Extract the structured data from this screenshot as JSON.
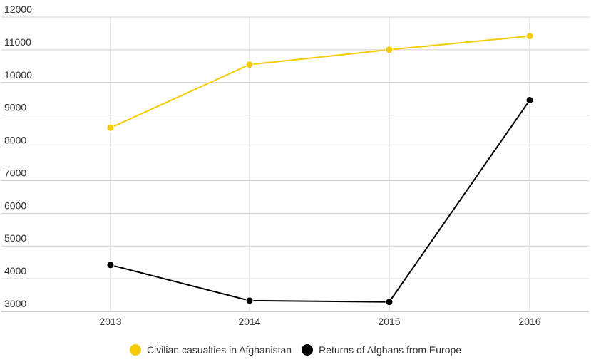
{
  "chart_data": {
    "type": "line",
    "categories": [
      "2013",
      "2014",
      "2015",
      "2016"
    ],
    "y_ticks": [
      "3000",
      "4000",
      "5000",
      "6000",
      "7000",
      "8000",
      "9000",
      "10000",
      "11000",
      "12000"
    ],
    "ylim": [
      3000,
      12000
    ],
    "grid": true,
    "legend_position": "bottom",
    "series": [
      {
        "name": "Civilian casualties in Afghanistan",
        "color": "#f5cc00",
        "values": [
          8615,
          10548,
          11002,
          11418
        ]
      },
      {
        "name": "Returns of Afghans from Europe",
        "color": "#000000",
        "values": [
          4420,
          3330,
          3290,
          9460
        ]
      }
    ]
  }
}
